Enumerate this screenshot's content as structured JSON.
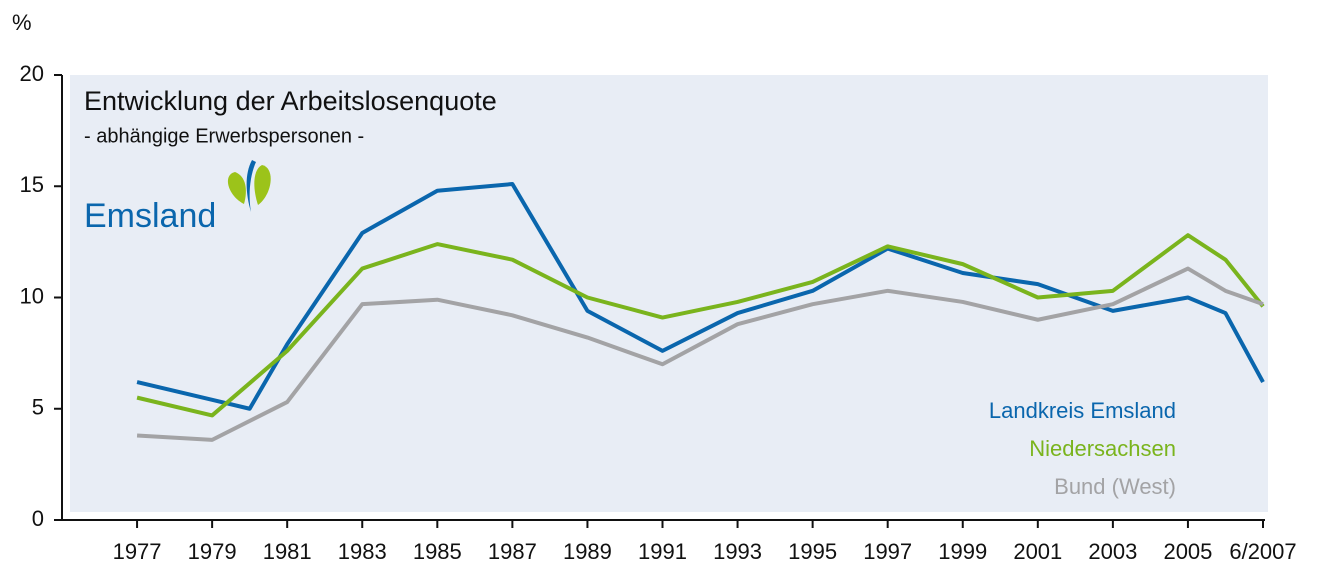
{
  "chart_data": {
    "type": "line",
    "title": "Entwicklung der Arbeitslosenquote",
    "subtitle": "- abhängige Erwerbspersonen -",
    "y_label": "%",
    "logo": "Emsland",
    "xlim": [
      1975,
      2007
    ],
    "xticks": [
      1977,
      1979,
      1981,
      1983,
      1985,
      1987,
      1989,
      1991,
      1993,
      1995,
      1997,
      1999,
      2001,
      2003,
      2005,
      {
        "value": 2007,
        "label": "6/2007"
      }
    ],
    "ylim": [
      0,
      20
    ],
    "yticks": [
      0,
      5,
      10,
      15,
      20
    ],
    "legend": "lower right",
    "background": "#e8edf5",
    "series": [
      {
        "name": "Landkreis Emsland",
        "color": "#0a66ad",
        "x": [
          1977,
          1979,
          1980,
          1981,
          1983,
          1985,
          1987,
          1989,
          1991,
          1993,
          1995,
          1997,
          1999,
          2001,
          2003,
          2005,
          2006,
          2007
        ],
        "values": [
          6.2,
          5.4,
          5.0,
          7.9,
          12.9,
          14.8,
          15.1,
          9.4,
          7.6,
          9.3,
          10.3,
          12.2,
          11.1,
          10.6,
          9.4,
          10.0,
          9.3,
          6.2
        ]
      },
      {
        "name": "Niedersachsen",
        "color": "#7ab41d",
        "x": [
          1977,
          1979,
          1981,
          1983,
          1985,
          1987,
          1989,
          1991,
          1993,
          1995,
          1997,
          1999,
          2001,
          2003,
          2005,
          2006,
          2007
        ],
        "values": [
          5.5,
          4.7,
          7.6,
          11.3,
          12.4,
          11.7,
          10.0,
          9.1,
          9.8,
          10.7,
          12.3,
          11.5,
          10.0,
          10.3,
          12.8,
          11.7,
          9.6
        ]
      },
      {
        "name": "Bund (West)",
        "color": "#a3a3a5",
        "x": [
          1977,
          1979,
          1981,
          1983,
          1985,
          1987,
          1989,
          1991,
          1993,
          1995,
          1997,
          1999,
          2001,
          2003,
          2005,
          2006,
          2007
        ],
        "values": [
          3.8,
          3.6,
          5.3,
          9.7,
          9.9,
          9.2,
          8.2,
          7.0,
          8.8,
          9.7,
          10.3,
          9.8,
          9.0,
          9.7,
          11.3,
          10.3,
          9.7
        ]
      }
    ]
  }
}
